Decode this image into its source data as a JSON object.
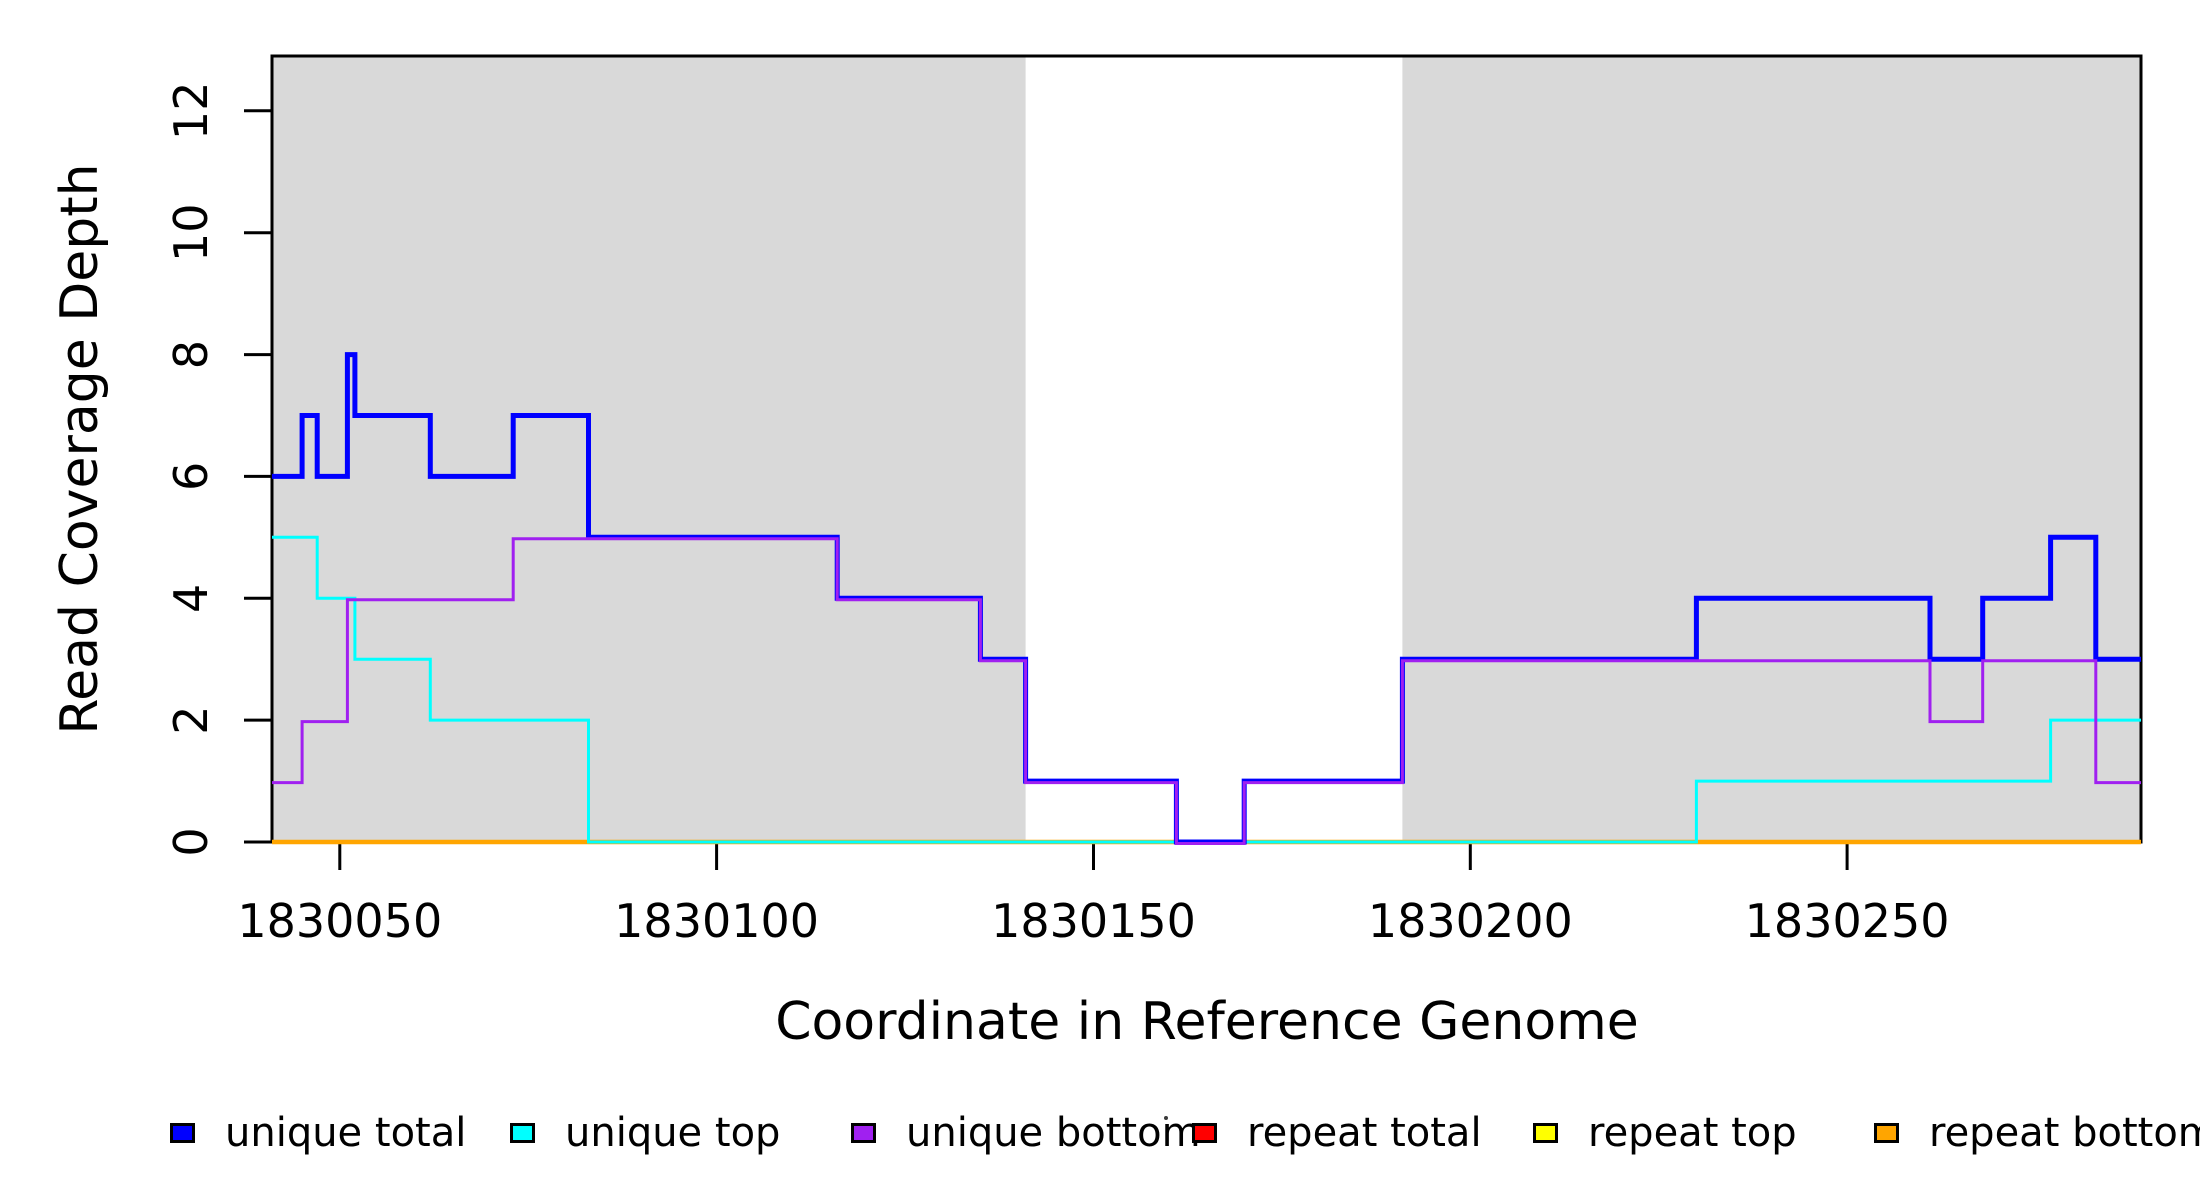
{
  "chart_data": {
    "type": "line",
    "line_style": "step-post",
    "title": "",
    "xlabel": "Coordinate in Reference Genome",
    "ylabel": "Read Coverage Depth",
    "xlim": [
      1830041,
      1830289
    ],
    "ylim": [
      0,
      12.9
    ],
    "xticks": [
      1830050,
      1830100,
      1830150,
      1830200,
      1830250
    ],
    "yticks": [
      0,
      2,
      4,
      6,
      8,
      10,
      12
    ],
    "grid": false,
    "shaded_regions": {
      "color": "#D9D9D9",
      "ranges": [
        [
          1830041,
          1830141
        ],
        [
          1830191,
          1830289
        ]
      ]
    },
    "series": [
      {
        "name": "repeat total",
        "color": "#FF0000",
        "linewidth": 3,
        "x": [
          1830041,
          1830289
        ],
        "levels": [
          0
        ]
      },
      {
        "name": "repeat top",
        "color": "#FFFF00",
        "linewidth": 3,
        "x": [
          1830041,
          1830289
        ],
        "levels": [
          0
        ]
      },
      {
        "name": "repeat bottom",
        "color": "#FFA500",
        "linewidth": 4.5,
        "x": [
          1830041,
          1830289
        ],
        "levels": [
          0
        ]
      },
      {
        "name": "unique top",
        "color": "#00FFFF",
        "linewidth": 3,
        "x": [
          1830041,
          1830047,
          1830052,
          1830062,
          1830083,
          1830230,
          1830277,
          1830289
        ],
        "levels": [
          5,
          4,
          3,
          2,
          0,
          1,
          2
        ]
      },
      {
        "name": "unique total",
        "color": "#0000FF",
        "linewidth": 5,
        "x": [
          1830041,
          1830045,
          1830047,
          1830051,
          1830052,
          1830062,
          1830073,
          1830083,
          1830116,
          1830135,
          1830141,
          1830161,
          1830170,
          1830191,
          1830230,
          1830261,
          1830268,
          1830277,
          1830283,
          1830289
        ],
        "levels": [
          6,
          7,
          6,
          8,
          7,
          6,
          7,
          5,
          4,
          3,
          1,
          0,
          1,
          3,
          4,
          3,
          4,
          5,
          3
        ]
      },
      {
        "name": "unique bottom",
        "color": "#A020F0",
        "linewidth": 3,
        "x": [
          1830041,
          1830045,
          1830051,
          1830073,
          1830116,
          1830135,
          1830141,
          1830161,
          1830170,
          1830191,
          1830261,
          1830268,
          1830283,
          1830289
        ],
        "levels": [
          1,
          2,
          4,
          5,
          4,
          3,
          1,
          0,
          1,
          3,
          2,
          3,
          1
        ]
      }
    ],
    "legend": {
      "position": "bottom",
      "entries": [
        {
          "label": "unique total",
          "color": "#0000FF"
        },
        {
          "label": "unique top",
          "color": "#00FFFF"
        },
        {
          "label": "unique bottom",
          "color": "#A020F0"
        },
        {
          "label": "repeat total",
          "color": "#FF0000"
        },
        {
          "label": "repeat top",
          "color": "#FFFF00"
        },
        {
          "label": "repeat bottom",
          "color": "#FFA500"
        }
      ]
    },
    "axis_color": "#000000",
    "tick_label_color": "#000000"
  }
}
